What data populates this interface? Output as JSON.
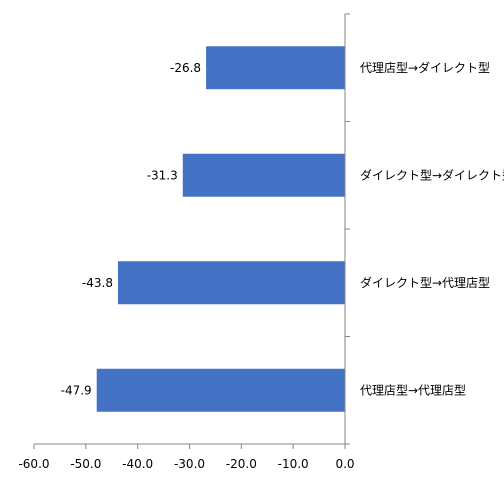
{
  "chart_data": {
    "type": "bar",
    "orientation": "horizontal",
    "title": "",
    "xlabel": "",
    "ylabel": "",
    "categories": [
      "代理店型→ダイレクト型",
      "ダイレクト型→ダイレクト型",
      "ダイレクト型→代理店型",
      "代理店型→代理店型"
    ],
    "values": [
      -26.8,
      -31.3,
      -43.8,
      -47.9
    ],
    "data_labels": [
      "-26.8",
      "-31.3",
      "-43.8",
      "-47.9"
    ],
    "xlim": [
      -60,
      0
    ],
    "x_ticks": [
      "-60.0",
      "-50.0",
      "-40.0",
      "-30.0",
      "-20.0",
      "-10.0",
      "0.0"
    ],
    "grid": false,
    "legend": "none",
    "bar_color": "#4472C4",
    "axis_color": "#868686"
  }
}
